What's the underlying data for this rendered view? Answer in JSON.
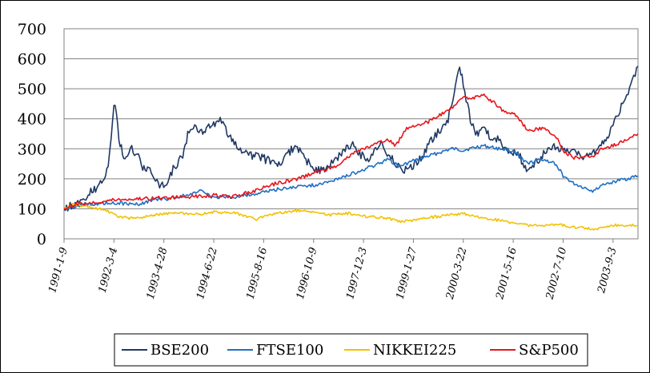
{
  "chart_data": {
    "type": "line",
    "title": "",
    "xlabel": "",
    "ylabel": "",
    "ylim": [
      0,
      700
    ],
    "yticks": [
      0,
      100,
      200,
      300,
      400,
      500,
      600,
      700
    ],
    "xticks": [
      "1991-1-9",
      "1992-3-4",
      "1993-4-28",
      "1994-6-22",
      "1995-8-16",
      "1996-10-9",
      "1997-12-3",
      "1999-1-27",
      "2000-3-22",
      "2001-5-16",
      "2002-7-10",
      "2003-9-3"
    ],
    "x_period": [
      "1991-1-9",
      "2004-3-31"
    ],
    "grid": "horizontal",
    "legend_position": "bottom",
    "series": [
      {
        "name": "BSE200",
        "color": "#1F3864",
        "points": [
          [
            "1991-1-9",
            100
          ],
          [
            "1991-4-1",
            115
          ],
          [
            "1991-7-1",
            130
          ],
          [
            "1991-9-1",
            165
          ],
          [
            "1991-11-1",
            170
          ],
          [
            "1992-1-15",
            240
          ],
          [
            "1992-2-10",
            330
          ],
          [
            "1992-3-4",
            440
          ],
          [
            "1992-3-25",
            420
          ],
          [
            "1992-4-15",
            340
          ],
          [
            "1992-5-15",
            280
          ],
          [
            "1992-6-15",
            260
          ],
          [
            "1992-8-1",
            300
          ],
          [
            "1992-9-15",
            280
          ],
          [
            "1992-11-1",
            240
          ],
          [
            "1993-1-1",
            230
          ],
          [
            "1993-3-1",
            190
          ],
          [
            "1993-4-15",
            175
          ],
          [
            "1993-6-1",
            190
          ],
          [
            "1993-7-15",
            230
          ],
          [
            "1993-9-1",
            260
          ],
          [
            "1993-10-15",
            290
          ],
          [
            "1993-11-15",
            350
          ],
          [
            "1994-1-1",
            380
          ],
          [
            "1994-3-1",
            350
          ],
          [
            "1994-5-1",
            370
          ],
          [
            "1994-7-1",
            385
          ],
          [
            "1994-8-15",
            395
          ],
          [
            "1994-10-1",
            365
          ],
          [
            "1994-12-1",
            330
          ],
          [
            "1995-2-1",
            300
          ],
          [
            "1995-4-1",
            280
          ],
          [
            "1995-6-1",
            275
          ],
          [
            "1995-8-1",
            270
          ],
          [
            "1995-10-1",
            260
          ],
          [
            "1995-12-1",
            240
          ],
          [
            "1996-2-1",
            265
          ],
          [
            "1996-4-15",
            300
          ],
          [
            "1996-6-15",
            290
          ],
          [
            "1996-8-15",
            260
          ],
          [
            "1996-10-9",
            240
          ],
          [
            "1996-12-1",
            225
          ],
          [
            "1997-2-1",
            235
          ],
          [
            "1997-4-1",
            260
          ],
          [
            "1997-6-1",
            290
          ],
          [
            "1997-8-1",
            305
          ],
          [
            "1997-9-15",
            320
          ],
          [
            "1997-11-1",
            280
          ],
          [
            "1998-1-15",
            270
          ],
          [
            "1998-3-15",
            300
          ],
          [
            "1998-5-1",
            320
          ],
          [
            "1998-7-1",
            280
          ],
          [
            "1998-9-1",
            250
          ],
          [
            "1998-11-1",
            225
          ],
          [
            "1999-1-15",
            240
          ],
          [
            "1999-4-1",
            270
          ],
          [
            "1999-6-15",
            320
          ],
          [
            "1999-9-1",
            360
          ],
          [
            "1999-11-15",
            400
          ],
          [
            "2000-1-15",
            500
          ],
          [
            "2000-2-20",
            580
          ],
          [
            "2000-3-22",
            520
          ],
          [
            "2000-4-15",
            460
          ],
          [
            "2000-6-1",
            380
          ],
          [
            "2000-7-15",
            350
          ],
          [
            "2000-9-15",
            380
          ],
          [
            "2000-11-15",
            320
          ],
          [
            "2001-1-15",
            330
          ],
          [
            "2001-3-15",
            300
          ],
          [
            "2001-5-16",
            290
          ],
          [
            "2001-7-15",
            270
          ],
          [
            "2001-9-15",
            215
          ],
          [
            "2001-11-15",
            250
          ],
          [
            "2002-1-15",
            280
          ],
          [
            "2002-3-15",
            300
          ],
          [
            "2002-5-15",
            305
          ],
          [
            "2002-7-10",
            300
          ],
          [
            "2002-9-15",
            290
          ],
          [
            "2002-11-15",
            280
          ],
          [
            "2003-1-15",
            270
          ],
          [
            "2003-3-15",
            290
          ],
          [
            "2003-5-15",
            300
          ],
          [
            "2003-7-15",
            340
          ],
          [
            "2003-9-3",
            380
          ],
          [
            "2003-11-1",
            430
          ],
          [
            "2003-12-15",
            470
          ],
          [
            "2004-2-1",
            520
          ],
          [
            "2004-3-31",
            575
          ]
        ]
      },
      {
        "name": "FTSE100",
        "color": "#1F6FC5",
        "points": [
          [
            "1991-1-9",
            100
          ],
          [
            "1991-7-1",
            115
          ],
          [
            "1992-1-1",
            120
          ],
          [
            "1992-6-1",
            118
          ],
          [
            "1992-10-1",
            115
          ],
          [
            "1993-1-1",
            128
          ],
          [
            "1993-7-1",
            135
          ],
          [
            "1994-1-1",
            150
          ],
          [
            "1994-3-15",
            160
          ],
          [
            "1994-6-1",
            140
          ],
          [
            "1994-12-1",
            140
          ],
          [
            "1995-6-1",
            150
          ],
          [
            "1995-12-1",
            165
          ],
          [
            "1996-6-1",
            175
          ],
          [
            "1996-12-1",
            180
          ],
          [
            "1997-6-1",
            205
          ],
          [
            "1997-12-1",
            230
          ],
          [
            "1998-7-1",
            265
          ],
          [
            "1998-10-1",
            240
          ],
          [
            "1999-1-27",
            260
          ],
          [
            "1999-6-1",
            275
          ],
          [
            "1999-12-15",
            300
          ],
          [
            "2000-3-22",
            295
          ],
          [
            "2000-9-1",
            310
          ],
          [
            "2001-1-15",
            300
          ],
          [
            "2001-5-16",
            295
          ],
          [
            "2001-9-15",
            250
          ],
          [
            "2002-1-15",
            265
          ],
          [
            "2002-5-15",
            250
          ],
          [
            "2002-7-10",
            210
          ],
          [
            "2002-10-1",
            185
          ],
          [
            "2003-3-15",
            160
          ],
          [
            "2003-6-1",
            180
          ],
          [
            "2003-9-3",
            190
          ],
          [
            "2003-12-31",
            200
          ],
          [
            "2004-3-31",
            210
          ]
        ]
      },
      {
        "name": "NIKKEI225",
        "color": "#F2C200",
        "points": [
          [
            "1991-1-9",
            100
          ],
          [
            "1991-3-15",
            115
          ],
          [
            "1991-6-1",
            110
          ],
          [
            "1991-9-1",
            105
          ],
          [
            "1992-1-1",
            95
          ],
          [
            "1992-4-1",
            75
          ],
          [
            "1992-8-1",
            68
          ],
          [
            "1993-1-1",
            75
          ],
          [
            "1993-4-28",
            85
          ],
          [
            "1993-9-1",
            85
          ],
          [
            "1994-1-1",
            80
          ],
          [
            "1994-6-22",
            90
          ],
          [
            "1995-1-1",
            85
          ],
          [
            "1995-6-15",
            65
          ],
          [
            "1995-12-1",
            85
          ],
          [
            "1996-6-1",
            95
          ],
          [
            "1996-10-9",
            90
          ],
          [
            "1997-3-1",
            80
          ],
          [
            "1997-8-1",
            85
          ],
          [
            "1997-12-3",
            75
          ],
          [
            "1998-6-1",
            70
          ],
          [
            "1998-10-1",
            58
          ],
          [
            "1999-1-27",
            60
          ],
          [
            "1999-7-1",
            72
          ],
          [
            "2000-3-22",
            85
          ],
          [
            "2000-9-1",
            70
          ],
          [
            "2001-3-15",
            58
          ],
          [
            "2001-9-15",
            45
          ],
          [
            "2002-1-15",
            42
          ],
          [
            "2002-5-15",
            50
          ],
          [
            "2002-10-1",
            38
          ],
          [
            "2003-4-15",
            32
          ],
          [
            "2003-9-3",
            45
          ],
          [
            "2004-3-31",
            45
          ]
        ]
      },
      {
        "name": "S&P500",
        "color": "#E8141B",
        "points": [
          [
            "1991-1-9",
            100
          ],
          [
            "1991-4-1",
            115
          ],
          [
            "1991-9-1",
            120
          ],
          [
            "1992-3-4",
            130
          ],
          [
            "1993-1-1",
            135
          ],
          [
            "1993-12-1",
            140
          ],
          [
            "1994-6-22",
            145
          ],
          [
            "1994-12-1",
            140
          ],
          [
            "1995-6-1",
            160
          ],
          [
            "1995-12-1",
            185
          ],
          [
            "1996-6-1",
            200
          ],
          [
            "1996-10-9",
            220
          ],
          [
            "1997-4-1",
            240
          ],
          [
            "1997-10-1",
            290
          ],
          [
            "1997-12-3",
            300
          ],
          [
            "1998-7-1",
            330
          ],
          [
            "1998-9-1",
            310
          ],
          [
            "1998-12-1",
            370
          ],
          [
            "1999-6-1",
            390
          ],
          [
            "1999-12-1",
            430
          ],
          [
            "2000-3-22",
            470
          ],
          [
            "2000-6-1",
            470
          ],
          [
            "2000-9-1",
            480
          ],
          [
            "2000-11-15",
            460
          ],
          [
            "2001-3-15",
            420
          ],
          [
            "2001-5-16",
            420
          ],
          [
            "2001-9-20",
            360
          ],
          [
            "2002-1-15",
            370
          ],
          [
            "2002-5-15",
            340
          ],
          [
            "2002-7-10",
            290
          ],
          [
            "2002-10-10",
            270
          ],
          [
            "2003-3-15",
            275
          ],
          [
            "2003-6-1",
            300
          ],
          [
            "2003-9-3",
            310
          ],
          [
            "2003-12-31",
            330
          ],
          [
            "2004-3-31",
            350
          ]
        ]
      }
    ]
  }
}
